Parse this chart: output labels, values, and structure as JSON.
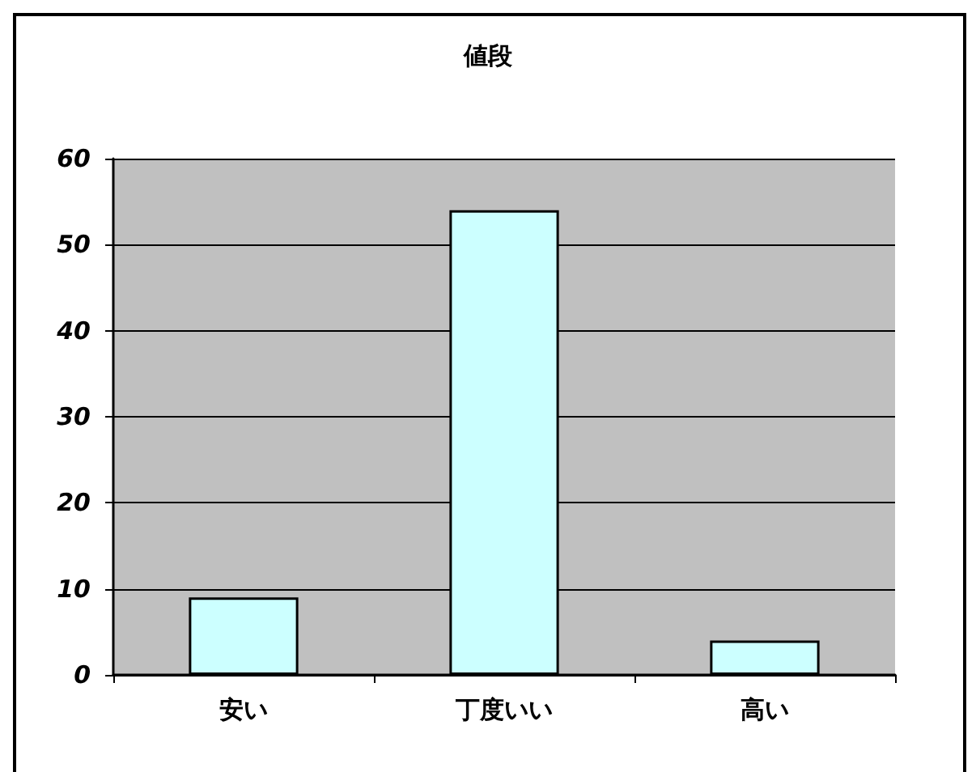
{
  "chart_data": {
    "type": "bar",
    "title": "値段",
    "categories": [
      "安い",
      "丁度いい",
      "高い"
    ],
    "values": [
      9,
      54,
      4
    ],
    "color": "#ccffff",
    "ylim": [
      0,
      60
    ],
    "yticks": [
      0,
      10,
      20,
      30,
      40,
      50,
      60
    ],
    "grid": "y"
  }
}
